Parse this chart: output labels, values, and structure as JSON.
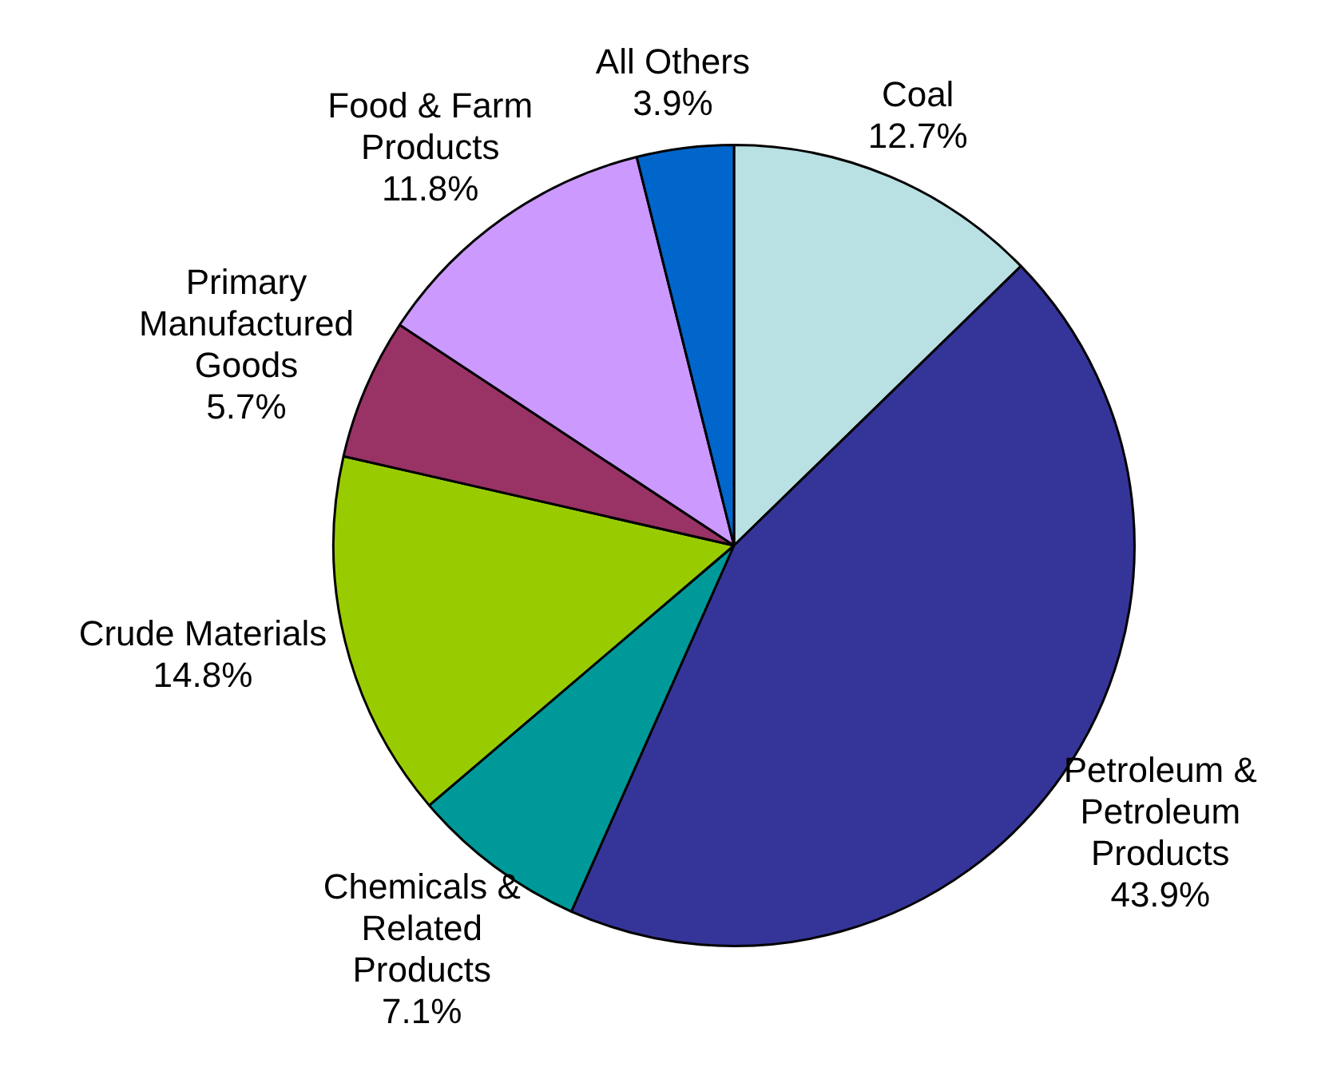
{
  "chart_data": {
    "type": "pie",
    "categories": [
      "Coal",
      "Petroleum & Petroleum Products",
      "Chemicals & Related Products",
      "Crude Materials",
      "Primary Manufactured Goods",
      "Food & Farm Products",
      "All Others"
    ],
    "values": [
      12.7,
      43.9,
      7.1,
      14.8,
      5.7,
      11.8,
      3.9
    ],
    "value_labels": [
      "12.7%",
      "43.9%",
      "7.1%",
      "14.8%",
      "5.7%",
      "11.8%",
      "3.9%"
    ],
    "colors": [
      "#b9e0e3",
      "#353599",
      "#009999",
      "#99cc00",
      "#993366",
      "#cc99ff",
      "#0066cc"
    ],
    "legend": false
  }
}
